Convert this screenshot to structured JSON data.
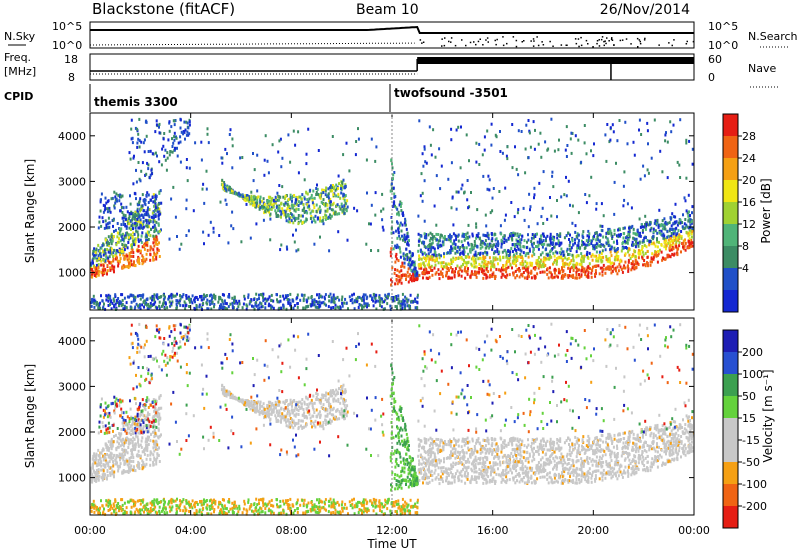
{
  "header": {
    "station": "Blackstone (fitACF)",
    "beam": "Beam 10",
    "date": "26/Nov/2014"
  },
  "noise_panel": {
    "left_label": "N.Sky",
    "right_label": "N.Search",
    "left_ticks": [
      "10^5",
      "10^0"
    ],
    "right_ticks": [
      "10^5",
      "10^0"
    ]
  },
  "freq_panel": {
    "left_label_1": "Freq.",
    "left_label_2": "[MHz]",
    "right_label": "Nave",
    "left_ticks": [
      "18",
      "8"
    ],
    "right_ticks": [
      "60",
      "0"
    ]
  },
  "cpid": {
    "label": "CPID",
    "segments": [
      {
        "name": "themis 3300",
        "start": "00:00",
        "end": "12:00"
      },
      {
        "name": "twofsound -3501",
        "start": "12:00",
        "end": "24:00"
      }
    ]
  },
  "colors": {
    "power_scale": [
      "#1428d2",
      "#2050c8",
      "#3c8c64",
      "#50b478",
      "#a0d232",
      "#f0e614",
      "#f5a014",
      "#f06414",
      "#e61e14"
    ],
    "velocity_scale": [
      "#1e1eb4",
      "#2850d2",
      "#3ca050",
      "#64d23c",
      "#c8c8c8",
      "#c8c8c8",
      "#f5a014",
      "#f06414",
      "#e61e14"
    ]
  },
  "chart_data": [
    {
      "type": "heatmap",
      "title": "Power",
      "xlabel": "",
      "ylabel": "Slant Range [km]",
      "x_ticks": [
        "00:00",
        "04:00",
        "08:00",
        "12:00",
        "16:00",
        "20:00",
        "00:00"
      ],
      "y_ticks": [
        1000,
        2000,
        3000,
        4000
      ],
      "ylim": [
        180,
        4500
      ],
      "colorbar": {
        "label": "Power [dB]",
        "ticks": [
          4,
          8,
          12,
          16,
          20,
          24,
          28
        ]
      }
    },
    {
      "type": "heatmap",
      "title": "Velocity",
      "xlabel": "Time UT",
      "ylabel": "Slant Range [km]",
      "x_ticks": [
        "00:00",
        "04:00",
        "08:00",
        "12:00",
        "16:00",
        "20:00",
        "00:00"
      ],
      "y_ticks": [
        1000,
        2000,
        3000,
        4000
      ],
      "ylim": [
        180,
        4500
      ],
      "colorbar": {
        "label": "Velocity [m s⁻¹]",
        "ticks": [
          200,
          100,
          50,
          15,
          -15,
          -50,
          -100,
          -200
        ]
      }
    }
  ]
}
